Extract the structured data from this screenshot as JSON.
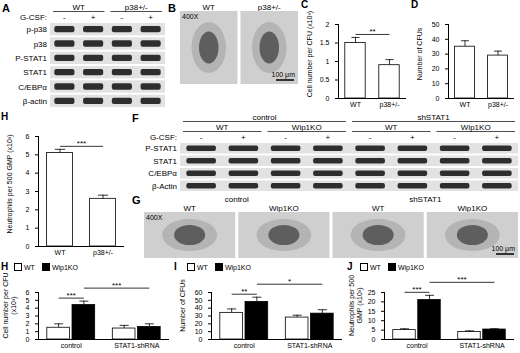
{
  "chart_data": [
    {
      "panel": "C",
      "type": "bar",
      "ylabel": "Cell number per CFU (x10³)",
      "categories": [
        "WT",
        "p38+/-"
      ],
      "values": [
        1.5,
        0.9
      ],
      "errors": [
        0.15,
        0.15
      ],
      "color": "#ffffff",
      "ylim": [
        0,
        2
      ],
      "yticks": [
        0,
        0.5,
        1,
        1.5,
        2
      ],
      "annotations": [
        {
          "text": "**",
          "from": "WT",
          "to": "p38+/-"
        }
      ]
    },
    {
      "panel": "D",
      "type": "bar",
      "ylabel": "Number of CFUs",
      "categories": [
        "WT",
        "p38+/-"
      ],
      "values": [
        35,
        29
      ],
      "errors": [
        4,
        3
      ],
      "color": "#ffffff",
      "ylim": [
        0,
        50
      ],
      "yticks": [
        0,
        10,
        20,
        30,
        40,
        50
      ]
    },
    {
      "panel": "H",
      "type": "bar",
      "ylabel": "Neutrophils per 500 GMP (x10³)",
      "categories": [
        "WT",
        "p38+/-"
      ],
      "values": [
        5.1,
        2.6
      ],
      "errors": [
        0.2,
        0.2
      ],
      "color": "#ffffff",
      "ylim": [
        0,
        6
      ],
      "yticks": [
        0,
        1,
        2,
        3,
        4,
        5,
        6
      ],
      "annotations": [
        {
          "text": "***",
          "from": "WT",
          "to": "p38+/-"
        }
      ]
    },
    {
      "panel": "H",
      "type": "bar",
      "ylabel": "Cell number per CFU (x10³)",
      "categories": [
        "control",
        "STAT1-shRNA"
      ],
      "series": [
        {
          "name": "WT",
          "color": "#ffffff",
          "values": [
            1.5,
            1.4
          ],
          "errors": [
            0.5,
            0.4
          ]
        },
        {
          "name": "Wip1KO",
          "color": "#000000",
          "values": [
            4.4,
            1.6
          ],
          "errors": [
            0.5,
            0.4
          ]
        }
      ],
      "legend": "top",
      "ylim": [
        0,
        6
      ],
      "yticks": [
        0,
        1,
        2,
        3,
        4,
        5,
        6
      ],
      "annotations": [
        {
          "text": "***",
          "from": {
            "category": "control",
            "series": "WT"
          },
          "to": {
            "category": "control",
            "series": "Wip1KO"
          }
        },
        {
          "text": "***",
          "from": {
            "category": "control",
            "series": "Wip1KO"
          },
          "to": {
            "category": "STAT1-shRNA",
            "series": "Wip1KO"
          }
        }
      ]
    },
    {
      "panel": "I",
      "type": "bar",
      "ylabel": "Number of CFUs",
      "categories": [
        "control",
        "STAT1-shRNA"
      ],
      "series": [
        {
          "name": "WT",
          "color": "#ffffff",
          "values": [
            34,
            28
          ],
          "errors": [
            5,
            3
          ]
        },
        {
          "name": "Wip1KO",
          "color": "#000000",
          "values": [
            48,
            33
          ],
          "errors": [
            6,
            5
          ]
        }
      ],
      "legend": "top",
      "ylim": [
        0,
        60
      ],
      "yticks": [
        0,
        10,
        20,
        30,
        40,
        50,
        60
      ],
      "annotations": [
        {
          "text": "**",
          "from": {
            "category": "control",
            "series": "WT"
          },
          "to": {
            "category": "control",
            "series": "Wip1KO"
          }
        },
        {
          "text": "*",
          "from": {
            "category": "control",
            "series": "Wip1KO"
          },
          "to": {
            "category": "STAT1-shRNA",
            "series": "Wip1KO"
          }
        }
      ]
    },
    {
      "panel": "J",
      "type": "bar",
      "ylabel": "Neutrophils per 500 GMP (x10³)",
      "categories": [
        "control",
        "STAT1-shRNA"
      ],
      "series": [
        {
          "name": "WT",
          "color": "#ffffff",
          "values": [
            5,
            4
          ],
          "errors": [
            0.7,
            0.6
          ]
        },
        {
          "name": "Wip1KO",
          "color": "#000000",
          "values": [
            21,
            5.3
          ],
          "errors": [
            2.5,
            0.4
          ]
        }
      ],
      "legend": "top",
      "ylim": [
        0,
        25
      ],
      "yticks": [
        0,
        5,
        10,
        15,
        20,
        25
      ],
      "annotations": [
        {
          "text": "***",
          "from": {
            "category": "control",
            "series": "WT"
          },
          "to": {
            "category": "control",
            "series": "Wip1KO"
          }
        },
        {
          "text": "***",
          "from": {
            "category": "control",
            "series": "Wip1KO"
          },
          "to": {
            "category": "STAT1-shRNA",
            "series": "Wip1KO"
          }
        }
      ]
    }
  ],
  "blots": [
    {
      "panel": "A",
      "groups": [
        [
          "WT",
          "p38+/-"
        ]
      ],
      "treatment": {
        "label": "G-CSF:",
        "lanes": [
          "-",
          "+",
          "-",
          "+"
        ]
      },
      "rows": [
        "p-p38",
        "p38",
        "P-STAT1",
        "STAT1",
        "C/EBPα",
        "β-actin"
      ]
    },
    {
      "panel": "F",
      "groups": [
        [
          "control",
          "shSTAT1"
        ],
        [
          "WT",
          "Wip1KO",
          "WT",
          "Wip1KO"
        ]
      ],
      "treatment": {
        "label": "G-CSF:",
        "lanes": [
          "-",
          "+",
          "-",
          "+",
          "-",
          "+",
          "-",
          "+"
        ]
      },
      "rows": [
        "P-STAT1",
        "STAT1",
        "C/EBPα",
        "β-Actin"
      ]
    }
  ],
  "images": [
    {
      "panel": "B",
      "groups": [
        [
          "WT",
          "p38+/-"
        ]
      ],
      "magnification": "400X",
      "scale_bar": "100 μm"
    },
    {
      "panel": "G",
      "groups": [
        [
          "control",
          "shSTAT1"
        ],
        [
          "WT",
          "Wip1KO",
          "WT",
          "Wip1KO"
        ]
      ],
      "magnification": "400X",
      "scale_bar": "100 μm"
    }
  ]
}
